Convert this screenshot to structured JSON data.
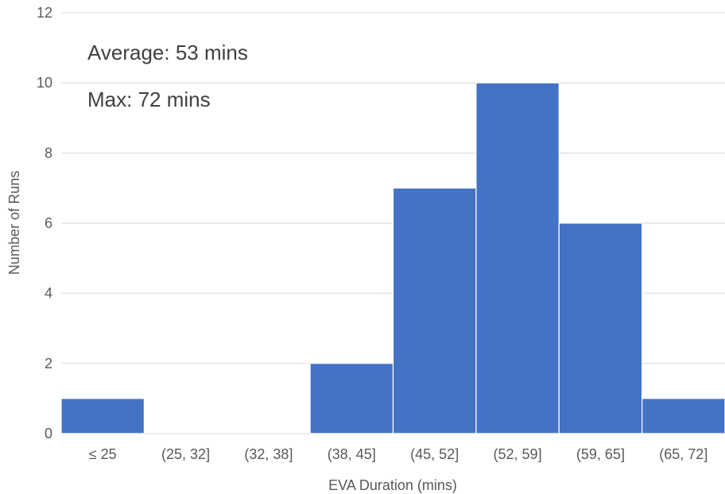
{
  "chart_data": {
    "type": "bar",
    "categories": [
      "≤ 25",
      "(25, 32]",
      "(32, 38]",
      "(38, 45]",
      "(45, 52]",
      "(52, 59]",
      "(59, 65]",
      "(65, 72]"
    ],
    "values": [
      1,
      0,
      0,
      2,
      7,
      10,
      6,
      1
    ],
    "xlabel": "EVA Duration (mins)",
    "ylabel": "Number of Runs",
    "ylim": [
      0,
      12
    ],
    "yticks": [
      0,
      2,
      4,
      6,
      8,
      10,
      12
    ],
    "grid": true,
    "bar_color": "#4472c4",
    "annotations": [
      "Average: 53 mins",
      "Max: 72 mins"
    ]
  }
}
